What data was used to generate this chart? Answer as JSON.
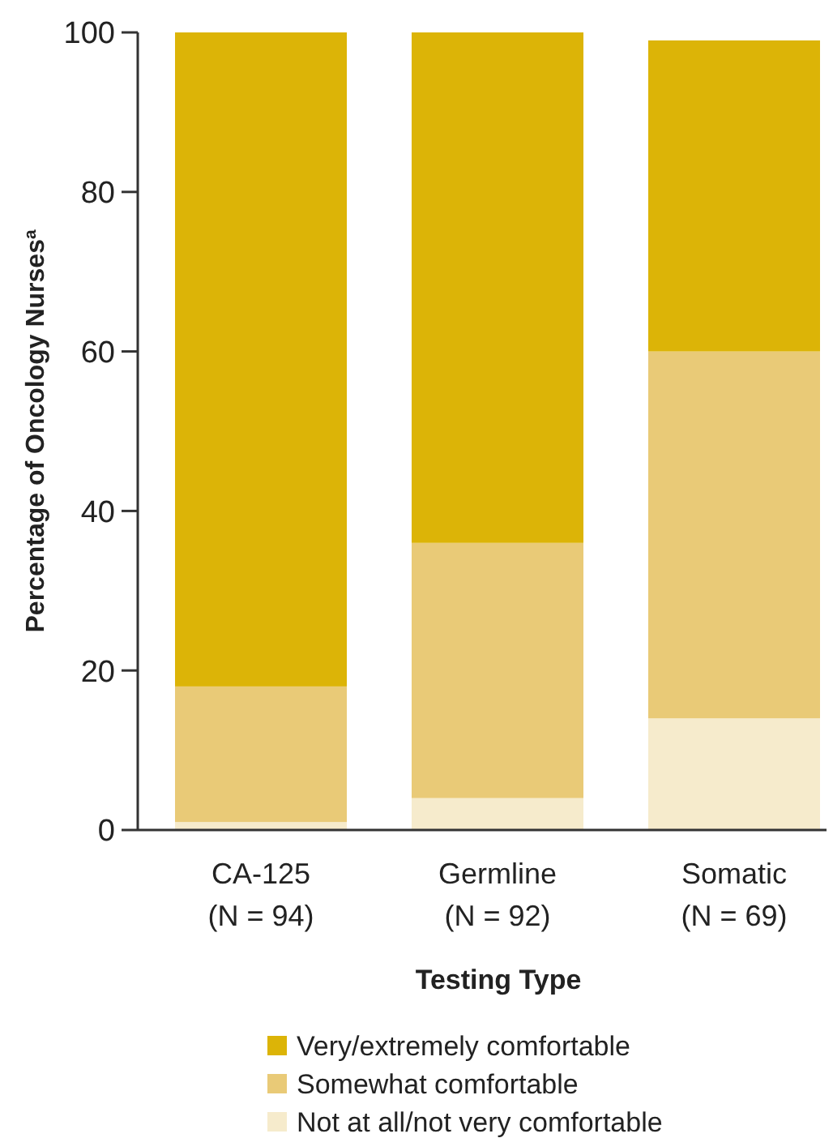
{
  "chart_data": {
    "type": "bar",
    "stacked": true,
    "xlabel": "Testing Type",
    "ylabel": "Percentage of Oncology Nurses$^{a}$",
    "categories": [
      "CA-125\n(N = 94)",
      "Germline\n(N = 92)",
      "Somatic\n(N = 69)"
    ],
    "series": [
      {
        "name": "Not at all/not very comfortable",
        "color": "#f6ebcc",
        "values": [
          1,
          4,
          14
        ]
      },
      {
        "name": "Somewhat comfortable",
        "color": "#e9ca77",
        "values": [
          17,
          32,
          46
        ]
      },
      {
        "name": "Very/extremely comfortable",
        "color": "#dcb407",
        "values": [
          82,
          64,
          39
        ]
      }
    ],
    "ylim": [
      0,
      100
    ],
    "yticks": [
      0,
      20,
      40,
      60,
      80,
      100
    ],
    "grid": false,
    "legend": "bottom"
  }
}
